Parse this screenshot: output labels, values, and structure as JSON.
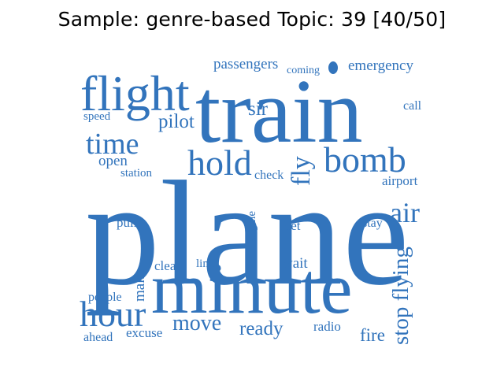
{
  "title": "Sample: genre-based Topic: 39 [40/50]",
  "word_color": "#3274BC",
  "words": [
    "plane",
    "train",
    "minute",
    "flight",
    "hold",
    "bomb",
    "hour",
    "time",
    "air",
    "fly",
    "stop flying",
    "move",
    "pilot",
    "sir",
    "passengers",
    "coming",
    "emergency",
    "call",
    "airport",
    "speed",
    "open",
    "station",
    "check",
    "pull",
    "engine",
    "feet",
    "stay",
    "make",
    "clear",
    "line",
    "wait",
    "people",
    "ready",
    "radio",
    "fire",
    "excuse",
    "ahead"
  ]
}
